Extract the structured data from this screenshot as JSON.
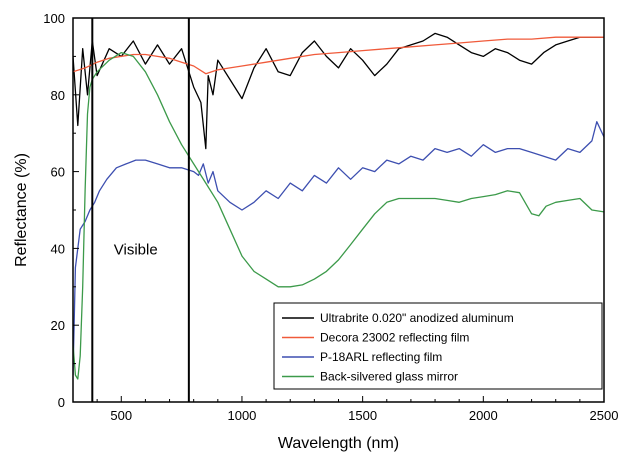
{
  "chart_data": {
    "type": "line",
    "title": "",
    "xlabel": "Wavelength (nm)",
    "ylabel": "Reflectance (%)",
    "xlim": [
      300,
      2500
    ],
    "ylim": [
      0,
      100
    ],
    "xticks": [
      500,
      1000,
      1500,
      2000,
      2500
    ],
    "yticks": [
      0,
      20,
      40,
      60,
      80,
      100
    ],
    "grid": false,
    "legend_position": "bottom-right",
    "annotations": [
      {
        "text": "Visible",
        "x": 560,
        "y": 40
      }
    ],
    "vertical_lines": [
      380,
      780
    ],
    "series": [
      {
        "name": "Ultrabrite 0.020\" anodized aluminum",
        "color": "#000000",
        "x": [
          300,
          320,
          340,
          360,
          380,
          400,
          450,
          500,
          550,
          600,
          650,
          700,
          750,
          800,
          830,
          850,
          860,
          880,
          900,
          950,
          1000,
          1050,
          1100,
          1150,
          1200,
          1250,
          1300,
          1350,
          1400,
          1450,
          1500,
          1550,
          1600,
          1650,
          1700,
          1750,
          1800,
          1850,
          1900,
          1950,
          2000,
          2050,
          2100,
          2150,
          2200,
          2250,
          2300,
          2350,
          2400,
          2450,
          2500
        ],
        "y": [
          90,
          72,
          92,
          80,
          94,
          85,
          92,
          90,
          94,
          88,
          93,
          88,
          92,
          82,
          78,
          66,
          85,
          80,
          89,
          84,
          79,
          87,
          92,
          86,
          85,
          91,
          94,
          90,
          87,
          92,
          89,
          85,
          88,
          92,
          93,
          94,
          96,
          95,
          93,
          91,
          90,
          92,
          91,
          89,
          88,
          91,
          93,
          94,
          95,
          95,
          95
        ]
      },
      {
        "name": "Decora 23002 reflecting film",
        "color": "#f05a3a",
        "x": [
          300,
          350,
          400,
          450,
          500,
          550,
          600,
          650,
          700,
          750,
          800,
          850,
          900,
          950,
          1000,
          1100,
          1200,
          1300,
          1400,
          1500,
          1600,
          1700,
          1800,
          1900,
          2000,
          2100,
          2200,
          2300,
          2400,
          2500
        ],
        "y": [
          86,
          87,
          88.5,
          89.5,
          90,
          90.5,
          90.5,
          90,
          89.5,
          88.5,
          87.5,
          85.5,
          86.5,
          87,
          87.5,
          88.5,
          89.5,
          90.5,
          91,
          91.5,
          92,
          92.5,
          93,
          93.5,
          94,
          94.5,
          94.5,
          95,
          95,
          95
        ]
      },
      {
        "name": "P-18ARL reflecting film",
        "color": "#3d4fb0",
        "x": [
          300,
          310,
          330,
          350,
          370,
          390,
          410,
          440,
          480,
          520,
          560,
          600,
          650,
          700,
          750,
          800,
          820,
          840,
          860,
          880,
          900,
          950,
          1000,
          1050,
          1100,
          1150,
          1200,
          1250,
          1300,
          1350,
          1400,
          1450,
          1500,
          1550,
          1600,
          1650,
          1700,
          1750,
          1800,
          1850,
          1900,
          1950,
          2000,
          2050,
          2100,
          2150,
          2200,
          2250,
          2300,
          2350,
          2400,
          2450,
          2470,
          2500
        ],
        "y": [
          7,
          35,
          45,
          47,
          50,
          52,
          55,
          58,
          61,
          62,
          63,
          63,
          62,
          61,
          61,
          60,
          59,
          62,
          57,
          60,
          55,
          52,
          50,
          52,
          55,
          53,
          57,
          55,
          59,
          57,
          61,
          58,
          61,
          60,
          63,
          62,
          64,
          63,
          66,
          65,
          66,
          64,
          67,
          65,
          66,
          66,
          65,
          64,
          63,
          66,
          65,
          68,
          73,
          69
        ]
      },
      {
        "name": "Back-silvered glass mirror",
        "color": "#3c9a4a",
        "x": [
          300,
          310,
          320,
          330,
          340,
          350,
          360,
          370,
          380,
          400,
          450,
          500,
          550,
          600,
          650,
          700,
          750,
          800,
          850,
          900,
          950,
          1000,
          1050,
          1100,
          1150,
          1200,
          1250,
          1300,
          1350,
          1400,
          1450,
          1500,
          1550,
          1600,
          1650,
          1700,
          1750,
          1800,
          1850,
          1900,
          1950,
          2000,
          2050,
          2100,
          2150,
          2200,
          2230,
          2260,
          2300,
          2350,
          2400,
          2450,
          2500
        ],
        "y": [
          15,
          7,
          6,
          12,
          30,
          55,
          75,
          82,
          84,
          86,
          89,
          91,
          90,
          86,
          80,
          73,
          67,
          62,
          57,
          52,
          45,
          38,
          34,
          32,
          30,
          30,
          30.5,
          32,
          34,
          37,
          41,
          45,
          49,
          52,
          53,
          53,
          53,
          53,
          52.5,
          52,
          53,
          53.5,
          54,
          55,
          54.5,
          49,
          48.5,
          51,
          52,
          52.5,
          53,
          50,
          49.5
        ]
      }
    ]
  }
}
